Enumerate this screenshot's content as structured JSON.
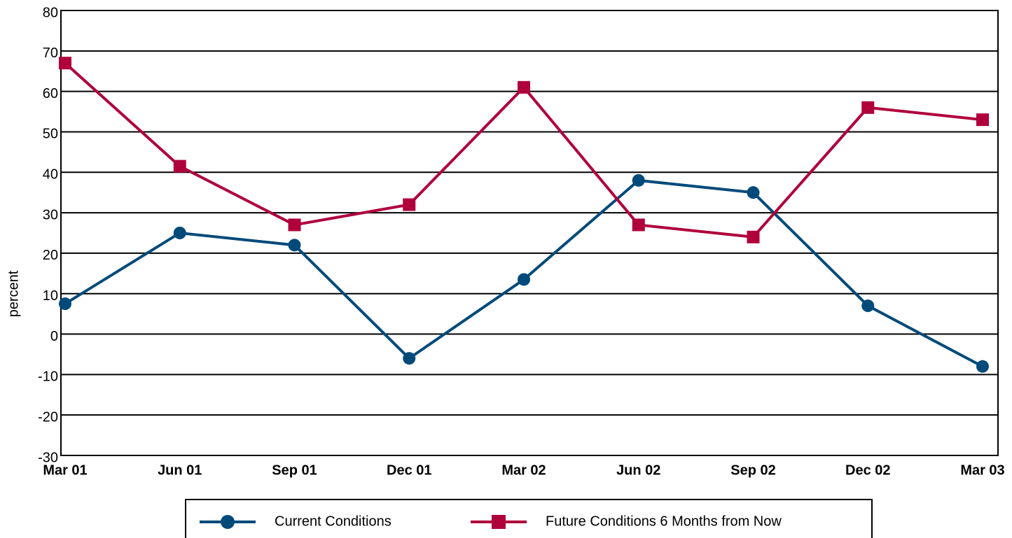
{
  "chart_data": {
    "type": "line",
    "y_label": "percent",
    "categories": [
      "Mar 01",
      "Jun 01",
      "Sep 01",
      "Dec 01",
      "Mar 02",
      "Jun 02",
      "Sep 02",
      "Dec 02",
      "Mar 03"
    ],
    "series": [
      {
        "name": "Current Conditions",
        "color": "#004a7a",
        "marker": "circle",
        "values": [
          7.5,
          25,
          22,
          -6,
          13.5,
          38,
          35,
          7,
          -8
        ]
      },
      {
        "name": "Future Conditions 6 Months from Now",
        "color": "#b0003c",
        "marker": "square",
        "values": [
          67,
          41.5,
          27,
          32,
          61,
          27,
          24,
          56,
          53
        ]
      }
    ],
    "ylim": [
      -30,
      80
    ],
    "yticks": [
      -30,
      -20,
      -10,
      0,
      10,
      20,
      30,
      40,
      50,
      60,
      70,
      80
    ],
    "grid": true
  }
}
